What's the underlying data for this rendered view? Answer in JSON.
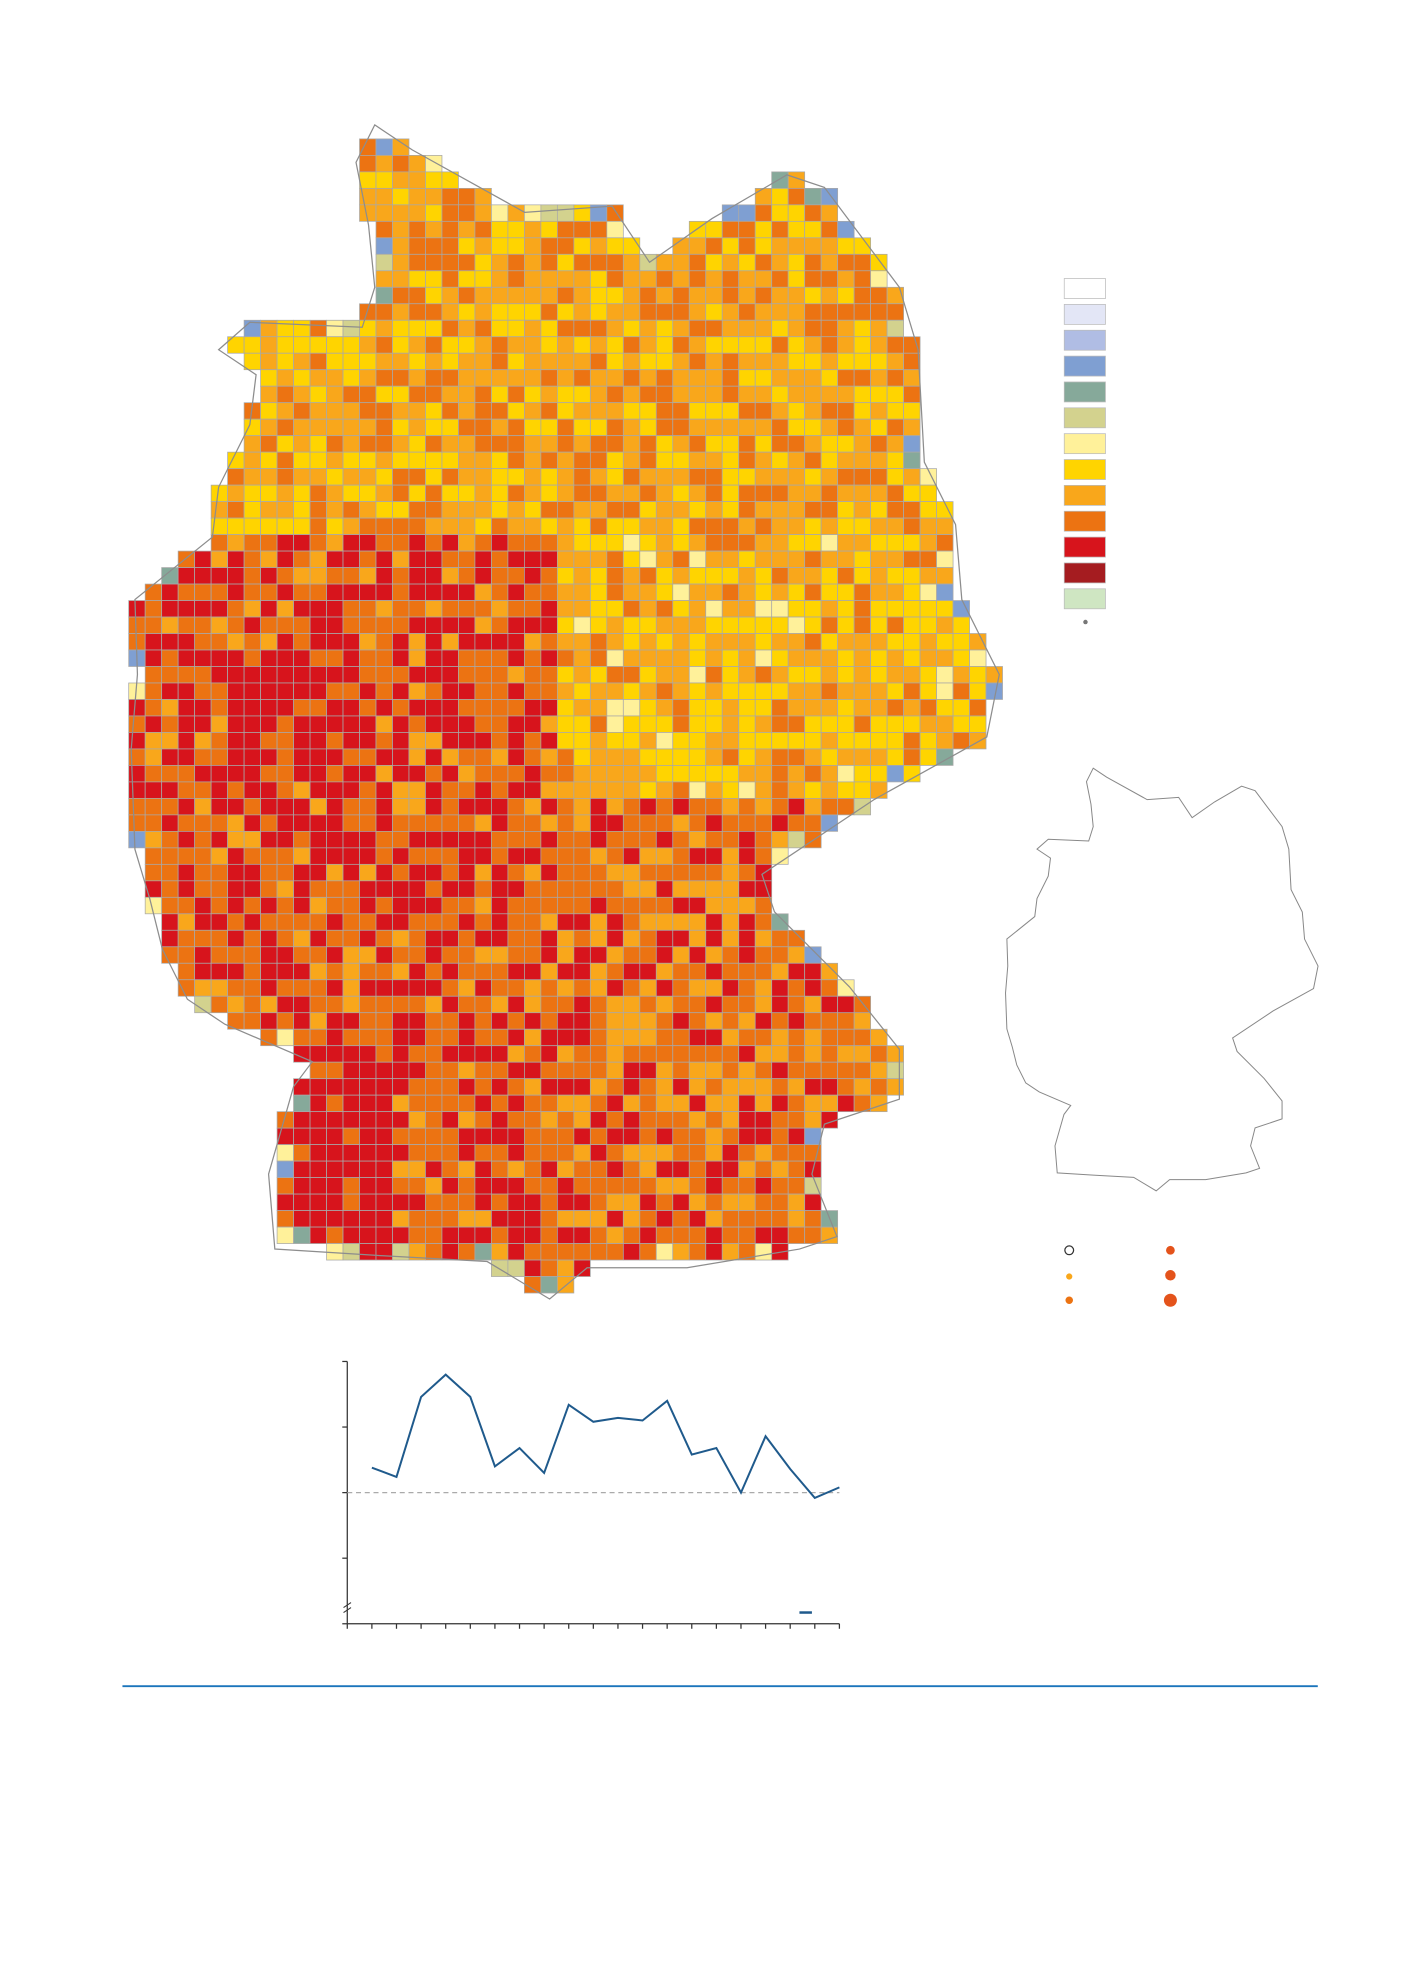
{
  "map_legend": {
    "colors": [
      "#ffffff",
      "#e3e6f6",
      "#b0bde4",
      "#7f9fd2",
      "#86a99a",
      "#d3d28e",
      "#fff19a",
      "#ffd400",
      "#f9a71b",
      "#ec7312",
      "#d7141c",
      "#a51c20",
      "#cfe6c2"
    ]
  },
  "chart_data": {
    "type": "line",
    "x": [
      1,
      2,
      3,
      4,
      5,
      6,
      7,
      8,
      9,
      10,
      11,
      12,
      13,
      14,
      15,
      16,
      17,
      18,
      19,
      20
    ],
    "series": [
      {
        "color": "#1f5a8c",
        "values": [
          119,
          112,
          173,
          190,
          173,
          120,
          134,
          115,
          167,
          154,
          157,
          155,
          170,
          129,
          134,
          100,
          143,
          118,
          96,
          104
        ]
      }
    ],
    "xlim": [
      0,
      20
    ],
    "xticks": [
      0,
      1,
      2,
      3,
      4,
      5,
      6,
      7,
      8,
      9,
      10,
      11,
      12,
      13,
      14,
      15,
      16,
      17,
      18,
      19,
      20
    ],
    "ylim": [
      0,
      200
    ],
    "yticks": [
      0,
      50,
      100,
      150,
      200
    ],
    "reference_line": 100
  }
}
